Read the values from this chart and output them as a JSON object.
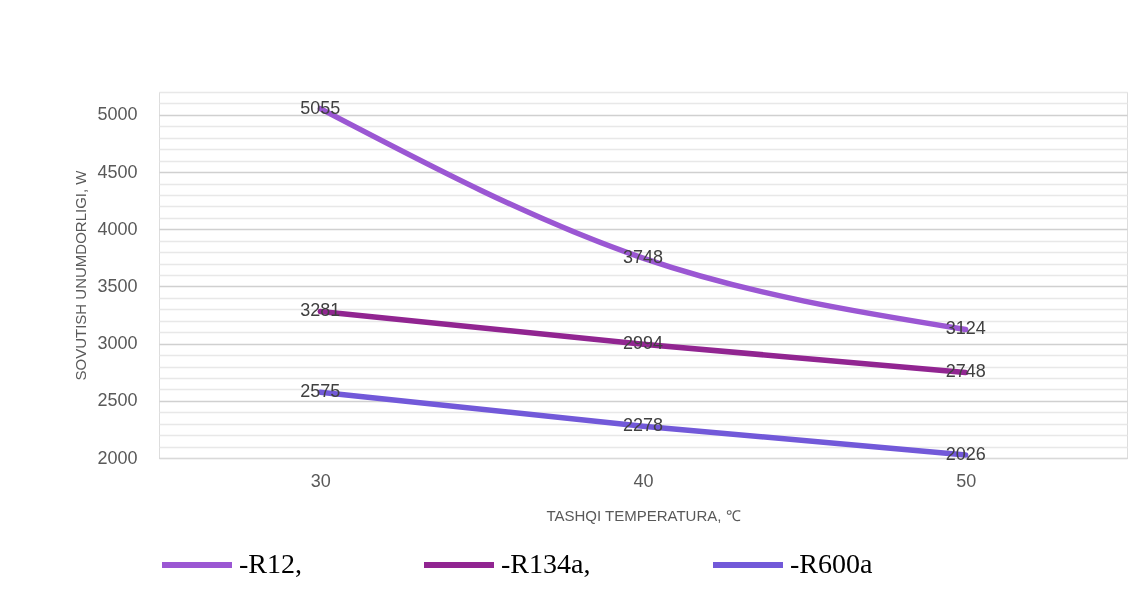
{
  "chart_data": {
    "type": "line",
    "xlabel": "TASHQI TEMPERATURA, ℃",
    "ylabel": "SOVUTISH UNUMDORLIGI, W",
    "x": [
      30,
      40,
      50
    ],
    "xlim": [
      25,
      55
    ],
    "xticks": [
      30,
      40,
      50
    ],
    "ylim": [
      2000,
      5200
    ],
    "yticks": [
      2000,
      {
        "value": 2100,
        "label": null
      },
      {
        "value": 2200,
        "label": null
      },
      {
        "value": 2300,
        "label": null
      },
      {
        "value": 2400,
        "label": null
      },
      2500,
      {
        "value": 2600,
        "label": null
      },
      {
        "value": 2700,
        "label": null
      },
      {
        "value": 2800,
        "label": null
      },
      {
        "value": 2900,
        "label": null
      },
      3000,
      {
        "value": 3100,
        "label": null
      },
      {
        "value": 3200,
        "label": null
      },
      {
        "value": 3300,
        "label": null
      },
      {
        "value": 3400,
        "label": null
      },
      3500,
      {
        "value": 3600,
        "label": null
      },
      {
        "value": 3700,
        "label": null
      },
      {
        "value": 3800,
        "label": null
      },
      {
        "value": 3900,
        "label": null
      },
      4000,
      {
        "value": 4100,
        "label": null
      },
      {
        "value": 4200,
        "label": null
      },
      {
        "value": 4300,
        "label": null
      },
      {
        "value": 4400,
        "label": null
      },
      4500,
      {
        "value": 4600,
        "label": null
      },
      {
        "value": 4700,
        "label": null
      },
      {
        "value": 4800,
        "label": null
      },
      {
        "value": 4900,
        "label": null
      },
      5000,
      {
        "value": 5100,
        "label": null
      },
      {
        "value": 5200,
        "label": null
      }
    ],
    "grid": "y",
    "legend": "bottom",
    "data_labels": true,
    "line_style": "solid",
    "series": [
      {
        "name": "-R12,",
        "color": "#9b57d3",
        "values": [
          5055,
          3748,
          3124
        ]
      },
      {
        "name": "-R134a,",
        "color": "#912591",
        "values": [
          3281,
          2994,
          2748
        ]
      },
      {
        "name": "-R600a",
        "color": "#7259d9",
        "values": [
          2575,
          2278,
          2026
        ]
      }
    ]
  }
}
